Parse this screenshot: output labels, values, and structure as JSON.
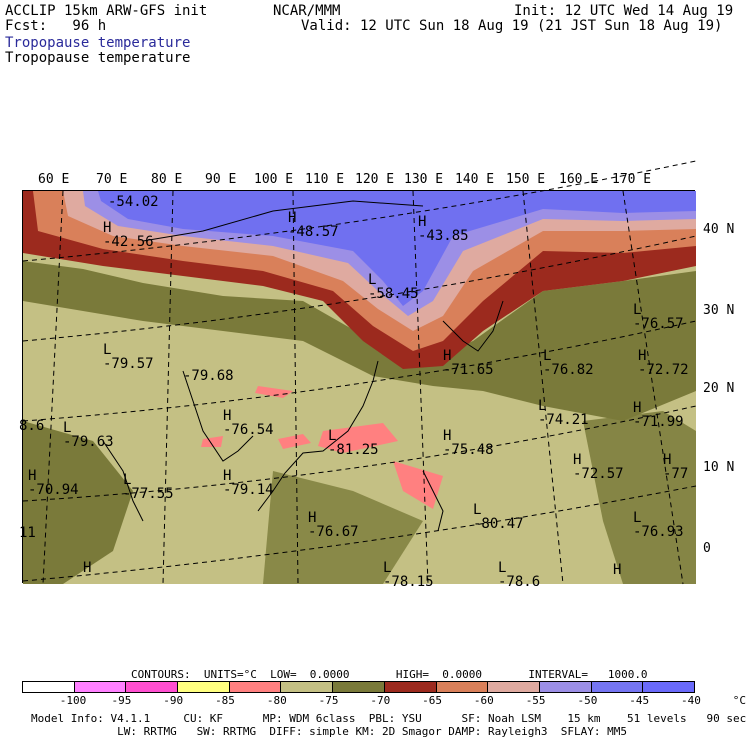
{
  "header": {
    "left1": "ACCLIP 15km ARW-GFS init",
    "left2": "Fcst:   96 h",
    "center": "NCAR/MMM",
    "right1": "Init: 12 UTC Wed 14 Aug 19",
    "right2": "Valid: 12 UTC Sun 18 Aug 19 (21 JST Sun 18 Aug 19)",
    "field_colored": "Tropopause temperature",
    "field_plain": "Tropopause temperature"
  },
  "map": {
    "lon_labels": [
      "60 E",
      "70 E",
      "80 E",
      "90 E",
      "100 E",
      "110 E",
      "120 E",
      "130 E",
      "140 E",
      "150 E",
      "160 E",
      "170 E"
    ],
    "lat_labels": [
      "40 N",
      "30 N",
      "20 N",
      "10 N",
      "0"
    ],
    "extrema": [
      {
        "letter": "",
        "value": "-54.02"
      },
      {
        "letter": "H",
        "value": "-42.56"
      },
      {
        "letter": "H",
        "value": "-48.57"
      },
      {
        "letter": "H",
        "value": "-43.85"
      },
      {
        "letter": "L",
        "value": "-58.45"
      },
      {
        "letter": "L",
        "value": "-79.57"
      },
      {
        "letter": "",
        "value": "-79.68"
      },
      {
        "letter": "H",
        "value": "-71.65"
      },
      {
        "letter": "L",
        "value": "-76.82"
      },
      {
        "letter": "L",
        "value": "-76.57"
      },
      {
        "letter": "H",
        "value": "-72.72"
      },
      {
        "letter": "L",
        "value": "-79.63"
      },
      {
        "letter": "H",
        "value": "-76.54"
      },
      {
        "letter": "L",
        "value": "-81.25"
      },
      {
        "letter": "H",
        "value": "-75.48"
      },
      {
        "letter": "L",
        "value": "-74.21"
      },
      {
        "letter": "H",
        "value": "-71.99"
      },
      {
        "letter": "H",
        "value": "-72.57"
      },
      {
        "letter": "H",
        "value": "-77"
      },
      {
        "letter": "H",
        "value": "-70.94"
      },
      {
        "letter": "L",
        "value": "-77.55"
      },
      {
        "letter": "H",
        "value": "-79.14"
      },
      {
        "letter": "H",
        "value": "-76.67"
      },
      {
        "letter": "L",
        "value": "-80.47"
      },
      {
        "letter": "L",
        "value": "-76.93"
      },
      {
        "letter": "",
        "value": "8.6"
      },
      {
        "letter": "",
        "value": "11"
      },
      {
        "letter": "H",
        "value": ""
      },
      {
        "letter": "L",
        "value": "-78.15"
      },
      {
        "letter": "L",
        "value": "-78.6"
      },
      {
        "letter": "H",
        "value": ""
      }
    ]
  },
  "contours": {
    "line": "CONTOURS:  UNITS=°C  LOW=  0.0000       HIGH=  0.0000       INTERVAL=   1000.0"
  },
  "colorbar": {
    "colors": [
      "#ffffff",
      "#ff80ff",
      "#ff4fd0",
      "#ffff80",
      "#ff8080",
      "#c4c084",
      "#7a7a3a",
      "#9c2a1e",
      "#d9805a",
      "#dfaaa0",
      "#9c8fe6",
      "#7575f2",
      "#6a6afa"
    ],
    "ticks": [
      "-100",
      "-95",
      "-90",
      "-85",
      "-80",
      "-75",
      "-70",
      "-65",
      "-60",
      "-55",
      "-50",
      "-45",
      "-40",
      "°C"
    ]
  },
  "footer": {
    "line1": "Model Info: V4.1.1     CU: KF      MP: WDM 6class  PBL: YSU      SF: Noah LSM    15 km    51 levels   90 sec",
    "line2": "             LW: RRTMG   SW: RRTMG  DIFF: simple KM: 2D Smagor DAMP: Rayleigh3  SFLAY: MM5"
  }
}
